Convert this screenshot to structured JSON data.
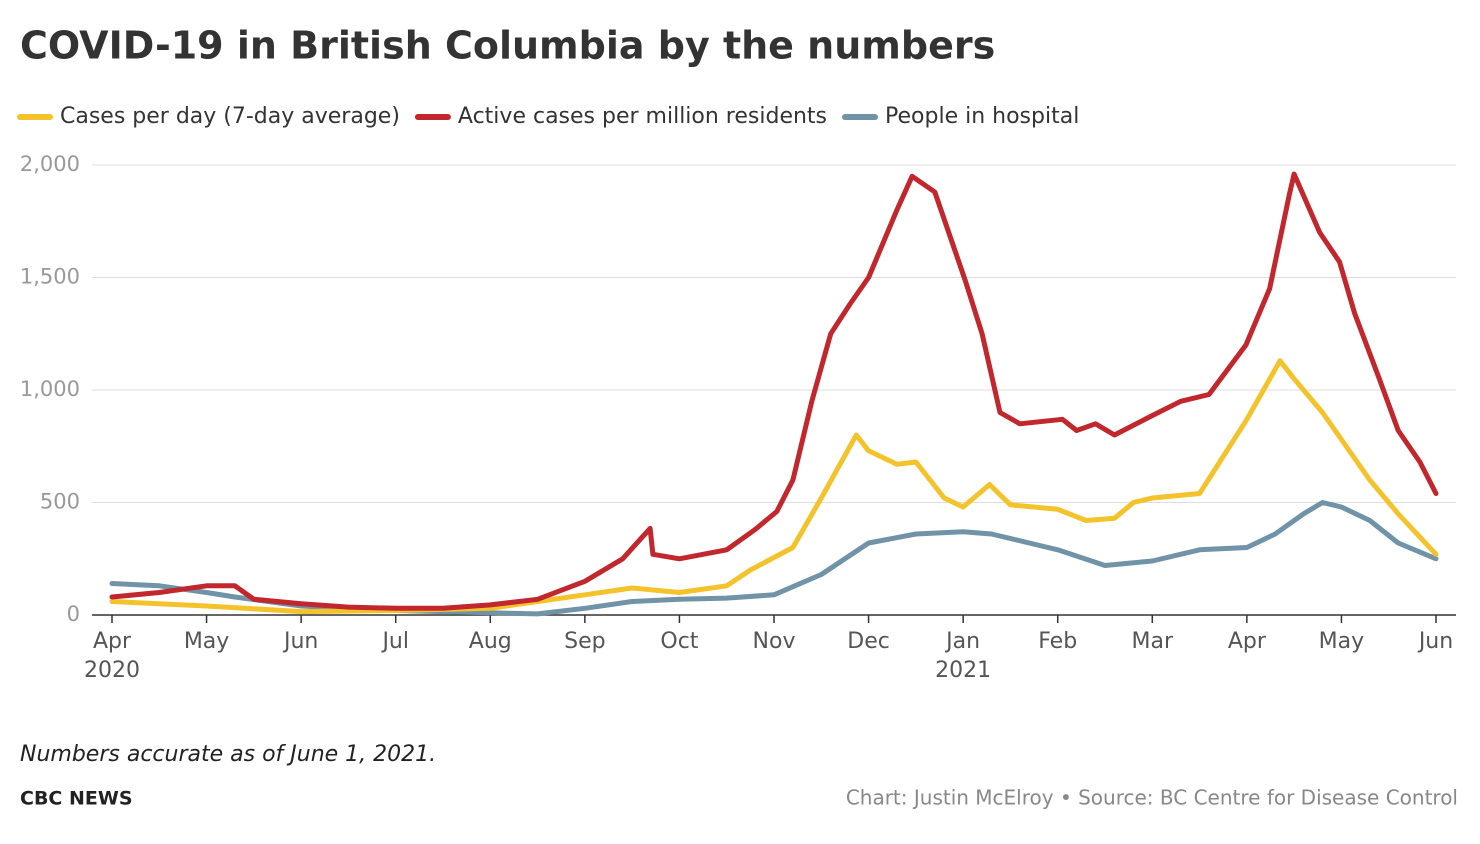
{
  "chart_data": {
    "type": "line",
    "title": "COVID-19 in British Columbia by the numbers",
    "note": "Numbers accurate as of June 1, 2021.",
    "brand": "CBC NEWS",
    "credit": "Chart: Justin McElroy • Source: BC Centre for Disease Control",
    "xlim": [
      0,
      14
    ],
    "xticks": [
      {
        "value": 0,
        "label": "Apr"
      },
      {
        "value": 1,
        "label": "May"
      },
      {
        "value": 2,
        "label": "Jun"
      },
      {
        "value": 3,
        "label": "Jul"
      },
      {
        "value": 4,
        "label": "Aug"
      },
      {
        "value": 5,
        "label": "Sep"
      },
      {
        "value": 6,
        "label": "Oct"
      },
      {
        "value": 7,
        "label": "Nov"
      },
      {
        "value": 8,
        "label": "Dec"
      },
      {
        "value": 9,
        "label": "Jan"
      },
      {
        "value": 10,
        "label": "Feb"
      },
      {
        "value": 11,
        "label": "Mar"
      },
      {
        "value": 12,
        "label": "Apr"
      },
      {
        "value": 13,
        "label": "May"
      },
      {
        "value": 14,
        "label": "Jun"
      }
    ],
    "year_labels": [
      {
        "value": 0,
        "label": "2020"
      },
      {
        "value": 9,
        "label": "2021"
      }
    ],
    "ylim": [
      0,
      2000
    ],
    "yticks": [
      0,
      500,
      {
        "value": 1000,
        "label": "1,000"
      },
      {
        "value": 1500,
        "label": "1,500"
      },
      {
        "value": 2000,
        "label": "2,000"
      }
    ],
    "grid": true,
    "series": [
      {
        "name": "Cases per day (7-day average)",
        "color": "#f4c22b",
        "x": [
          0,
          1,
          2,
          3,
          4,
          4.5,
          5,
          5.5,
          6,
          6.5,
          6.75,
          7.2,
          7.5,
          7.87,
          8,
          8.3,
          8.5,
          8.8,
          9,
          9.28,
          9.5,
          10,
          10.3,
          10.6,
          10.8,
          11,
          11.5,
          12,
          12.35,
          12.5,
          12.8,
          13,
          13.3,
          13.6,
          14
        ],
        "values": [
          60,
          40,
          15,
          20,
          30,
          60,
          90,
          120,
          100,
          130,
          200,
          300,
          520,
          800,
          730,
          670,
          680,
          520,
          480,
          580,
          490,
          470,
          420,
          430,
          500,
          520,
          540,
          870,
          1130,
          1050,
          900,
          780,
          600,
          450,
          270
        ]
      },
      {
        "name": "Active cases per million residents",
        "color": "#c1272d",
        "x": [
          0,
          0.5,
          1,
          1.3,
          1.5,
          2,
          2.5,
          3,
          3.5,
          4,
          4.5,
          5,
          5.4,
          5.69,
          5.72,
          6,
          6.5,
          6.8,
          7.03,
          7.2,
          7.4,
          7.6,
          7.8,
          8,
          8.3,
          8.46,
          8.7,
          9.02,
          9.2,
          9.39,
          9.6,
          10.05,
          10.2,
          10.4,
          10.6,
          10.97,
          11.3,
          11.6,
          11.99,
          12.24,
          12.45,
          12.5,
          12.77,
          12.98,
          13.14,
          13.4,
          13.6,
          13.83,
          14
        ],
        "values": [
          80,
          100,
          130,
          130,
          70,
          50,
          35,
          30,
          30,
          45,
          70,
          150,
          250,
          385,
          270,
          250,
          290,
          380,
          460,
          600,
          950,
          1250,
          1380,
          1500,
          1800,
          1950,
          1880,
          1490,
          1250,
          900,
          850,
          870,
          820,
          850,
          800,
          880,
          950,
          980,
          1200,
          1450,
          1870,
          1960,
          1700,
          1570,
          1340,
          1050,
          820,
          680,
          540
        ]
      },
      {
        "name": "People in hospital",
        "color": "#7093a8",
        "x": [
          0,
          0.5,
          1,
          1.3,
          2,
          3,
          4,
          4.5,
          5,
          5.5,
          6,
          6.5,
          7,
          7.5,
          8,
          8.5,
          9,
          9.3,
          9.7,
          10,
          10.5,
          11,
          11.5,
          12,
          12.3,
          12.6,
          12.8,
          13,
          13.3,
          13.6,
          14
        ],
        "values": [
          140,
          130,
          100,
          80,
          40,
          20,
          10,
          5,
          30,
          60,
          70,
          75,
          90,
          180,
          320,
          360,
          370,
          360,
          320,
          290,
          220,
          240,
          290,
          300,
          360,
          450,
          500,
          480,
          420,
          320,
          250
        ]
      }
    ]
  }
}
